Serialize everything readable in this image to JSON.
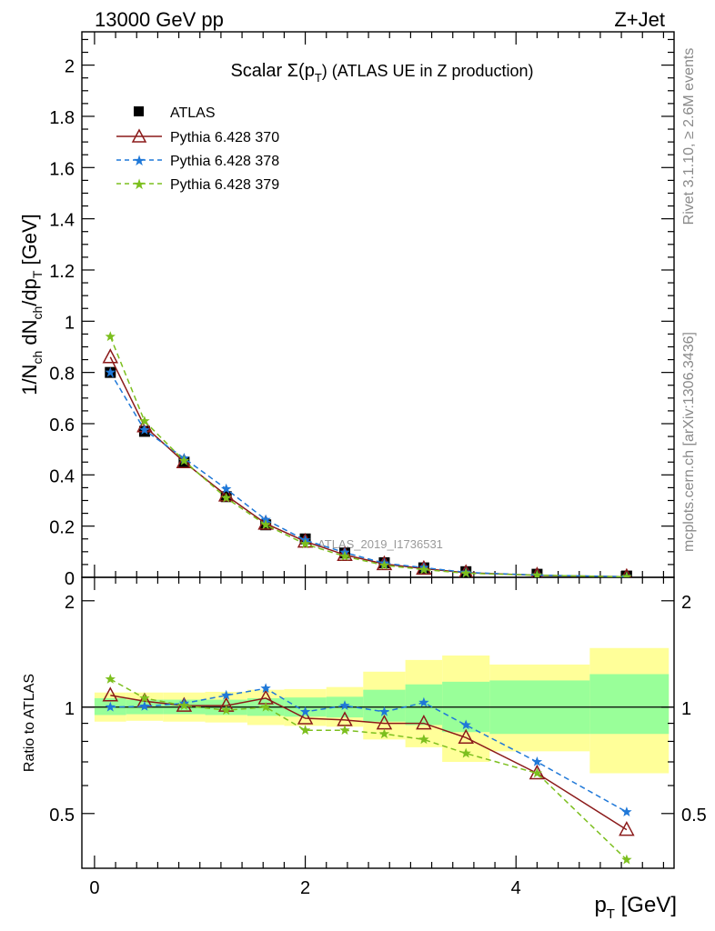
{
  "header": {
    "left": "13000 GeV pp",
    "right": "Z+Jet"
  },
  "side_labels": {
    "rivet": "Rivet 3.1.10, ≥ 2.6M events",
    "mcplots": "mcplots.cern.ch [arXiv:1306.3436]"
  },
  "watermark": "ATLAS_2019_I1736531",
  "chart_data": [
    {
      "type": "line",
      "title": "Scalar Σ(pT) (ATLAS UE in Z production)",
      "title_parts": {
        "a": "Scalar Σ(p",
        "sub": "T",
        "b": ") (ATLAS UE in Z production)"
      },
      "ylabel": "1/Nch dNch/dpT [GeV]",
      "xlim": [
        -0.12,
        5.5
      ],
      "ylim": [
        0,
        2.13
      ],
      "yticks": [
        0,
        0.2,
        0.4,
        0.6,
        0.8,
        1,
        1.2,
        1.4,
        1.6,
        1.8,
        2
      ],
      "ytick_labels": [
        "0",
        "0.2",
        "0.4",
        "0.6",
        "0.8",
        "1",
        "1.2",
        "1.4",
        "1.6",
        "1.8",
        "2"
      ],
      "legend_position": "top-left",
      "legend": [
        "ATLAS",
        "Pythia 6.428 370",
        "Pythia 6.428 378",
        "Pythia 6.428 379"
      ],
      "x": [
        0.15,
        0.475,
        0.85,
        1.25,
        1.625,
        2.0,
        2.375,
        2.75,
        3.125,
        3.525,
        4.2,
        5.05
      ],
      "series": [
        {
          "name": "ATLAS",
          "color": "#000000",
          "marker": "square",
          "values": [
            0.8,
            0.57,
            0.45,
            0.315,
            0.205,
            0.15,
            0.095,
            0.057,
            0.037,
            0.022,
            0.012,
            0.005
          ]
        },
        {
          "name": "Pythia 6.428 370",
          "color": "#8b1a1a",
          "marker": "triangle-open",
          "dash": "",
          "values": [
            0.86,
            0.59,
            0.45,
            0.32,
            0.21,
            0.14,
            0.088,
            0.052,
            0.034,
            0.018,
            0.008,
            0.0022
          ]
        },
        {
          "name": "Pythia 6.428 378",
          "color": "#1f78d8",
          "marker": "star",
          "dash": "6,4",
          "values": [
            0.8,
            0.575,
            0.465,
            0.345,
            0.225,
            0.145,
            0.097,
            0.055,
            0.038,
            0.019,
            0.0085,
            0.0026
          ]
        },
        {
          "name": "Pythia 6.428 379",
          "color": "#7cbf1e",
          "marker": "star",
          "dash": "6,4",
          "values": [
            0.94,
            0.61,
            0.455,
            0.31,
            0.205,
            0.13,
            0.082,
            0.047,
            0.03,
            0.016,
            0.008,
            0.0018
          ]
        }
      ]
    },
    {
      "type": "line",
      "title": "",
      "ylabel": "Ratio to ATLAS",
      "xlabel": "pT [GeV]",
      "xlabel_parts": {
        "a": "p",
        "sub": "T",
        "b": " [GeV]"
      },
      "xlim": [
        -0.12,
        5.5
      ],
      "ylim": [
        0.35,
        2.33
      ],
      "xticks": [
        0,
        2,
        4
      ],
      "xtick_labels": [
        "0",
        "2",
        "4"
      ],
      "yticks": [
        0.5,
        1,
        2
      ],
      "ytick_labels": [
        "0.5",
        "1",
        "2"
      ],
      "reference_line": 1,
      "x": [
        0.15,
        0.475,
        0.85,
        1.25,
        1.625,
        2.0,
        2.375,
        2.75,
        3.125,
        3.525,
        4.2,
        5.05
      ],
      "band_colors": {
        "outer": "#ffff99",
        "inner": "#99ff99"
      },
      "bands": [
        {
          "x0": 0.0,
          "x1": 0.3,
          "outer": [
            0.91,
            1.1
          ],
          "inner": [
            0.95,
            1.06
          ]
        },
        {
          "x0": 0.3,
          "x1": 0.65,
          "outer": [
            0.915,
            1.1
          ],
          "inner": [
            0.955,
            1.05
          ]
        },
        {
          "x0": 0.65,
          "x1": 1.05,
          "outer": [
            0.91,
            1.1
          ],
          "inner": [
            0.955,
            1.05
          ]
        },
        {
          "x0": 1.05,
          "x1": 1.45,
          "outer": [
            0.905,
            1.105
          ],
          "inner": [
            0.95,
            1.05
          ]
        },
        {
          "x0": 1.45,
          "x1": 1.8,
          "outer": [
            0.89,
            1.12
          ],
          "inner": [
            0.945,
            1.06
          ]
        },
        {
          "x0": 1.8,
          "x1": 2.2,
          "outer": [
            0.885,
            1.125
          ],
          "inner": [
            0.94,
            1.065
          ]
        },
        {
          "x0": 2.2,
          "x1": 2.55,
          "outer": [
            0.88,
            1.14
          ],
          "inner": [
            0.935,
            1.07
          ]
        },
        {
          "x0": 2.55,
          "x1": 2.95,
          "outer": [
            0.81,
            1.26
          ],
          "inner": [
            0.91,
            1.12
          ]
        },
        {
          "x0": 2.95,
          "x1": 3.3,
          "outer": [
            0.77,
            1.36
          ],
          "inner": [
            0.89,
            1.16
          ]
        },
        {
          "x0": 3.3,
          "x1": 3.75,
          "outer": [
            0.7,
            1.4
          ],
          "inner": [
            0.85,
            1.18
          ]
        },
        {
          "x0": 3.75,
          "x1": 4.7,
          "outer": [
            0.75,
            1.32
          ],
          "inner": [
            0.84,
            1.19
          ]
        },
        {
          "x0": 4.7,
          "x1": 5.45,
          "outer": [
            0.65,
            1.47
          ],
          "inner": [
            0.84,
            1.24
          ]
        }
      ],
      "series": [
        {
          "name": "Pythia 6.428 370",
          "color": "#8b1a1a",
          "marker": "triangle-open",
          "dash": "",
          "values": [
            1.08,
            1.04,
            1.01,
            1.01,
            1.06,
            0.93,
            0.92,
            0.9,
            0.9,
            0.82,
            0.65,
            0.45
          ]
        },
        {
          "name": "Pythia 6.428 378",
          "color": "#1f78d8",
          "marker": "star",
          "dash": "6,4",
          "values": [
            1.0,
            1.005,
            1.025,
            1.08,
            1.13,
            0.97,
            1.01,
            0.97,
            1.03,
            0.89,
            0.7,
            0.505
          ]
        },
        {
          "name": "Pythia 6.428 379",
          "color": "#7cbf1e",
          "marker": "star",
          "dash": "6,4",
          "values": [
            1.2,
            1.06,
            1.01,
            0.98,
            1.0,
            0.86,
            0.86,
            0.84,
            0.81,
            0.74,
            0.65,
            0.37
          ]
        }
      ]
    }
  ]
}
